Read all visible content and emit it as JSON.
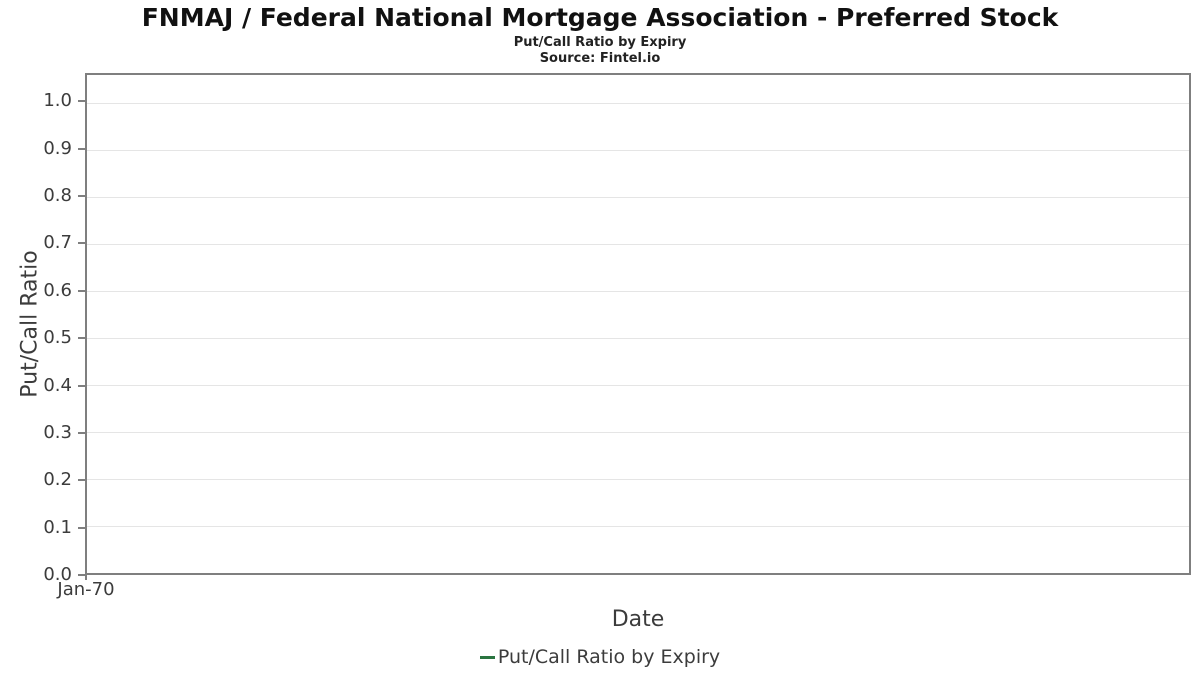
{
  "header": {
    "title": "FNMAJ / Federal National Mortgage Association - Preferred Stock",
    "subtitle": "Put/Call Ratio by Expiry",
    "source": "Source: Fintel.io"
  },
  "chart_data": {
    "type": "line",
    "title": "FNMAJ / Federal National Mortgage Association - Preferred Stock",
    "subtitle": "Put/Call Ratio by Expiry",
    "source": "Source: Fintel.io",
    "xlabel": "Date",
    "ylabel": "Put/Call Ratio",
    "ylim": [
      0.0,
      1.06
    ],
    "yticks": [
      0.0,
      0.1,
      0.2,
      0.3,
      0.4,
      0.5,
      0.6,
      0.7,
      0.8,
      0.9,
      1.0
    ],
    "xticks": [
      "Jan-70"
    ],
    "grid": "horizontal",
    "legend_position": "bottom",
    "series": [
      {
        "name": "Put/Call Ratio by Expiry",
        "color": "#2a7540",
        "x": [],
        "values": []
      }
    ]
  },
  "legend": {
    "label": "Put/Call Ratio by Expiry",
    "color": "#2a7540"
  }
}
